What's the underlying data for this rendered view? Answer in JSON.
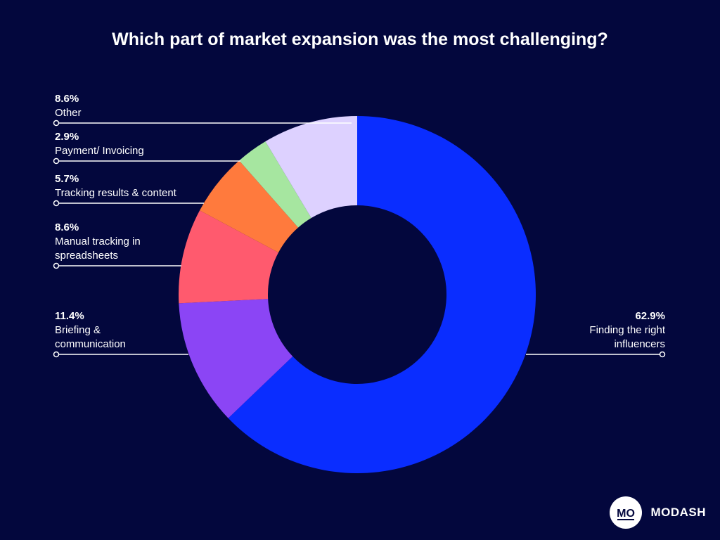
{
  "chart_data": {
    "type": "pie",
    "title": "Which part of market expansion was the most challenging?",
    "donut": true,
    "slices": [
      {
        "label_lines": [
          "Finding the right",
          "influencers"
        ],
        "value": 62.9,
        "value_label": "62.9%",
        "color": "#0a2dff",
        "side": "right"
      },
      {
        "label_lines": [
          "Briefing &",
          "communication"
        ],
        "value": 11.4,
        "value_label": "11.4%",
        "color": "#8b45f5",
        "side": "left"
      },
      {
        "label_lines": [
          "Manual tracking in",
          "spreadsheets"
        ],
        "value": 8.6,
        "value_label": "8.6%",
        "color": "#ff5a6e",
        "side": "left"
      },
      {
        "label_lines": [
          "Tracking results & content"
        ],
        "value": 5.7,
        "value_label": "5.7%",
        "color": "#ff7a3d",
        "side": "left"
      },
      {
        "label_lines": [
          "Payment/ Invoicing"
        ],
        "value": 2.9,
        "value_label": "2.9%",
        "color": "#a6e6a0",
        "side": "left"
      },
      {
        "label_lines": [
          "Other"
        ],
        "value": 8.6,
        "value_label": "8.6%",
        "color": "#ddd1ff",
        "side": "left"
      }
    ]
  },
  "colors": {
    "background": "#03073d",
    "text": "#ffffff"
  },
  "brand": {
    "name": "MODASH",
    "logo_text": "MO"
  }
}
